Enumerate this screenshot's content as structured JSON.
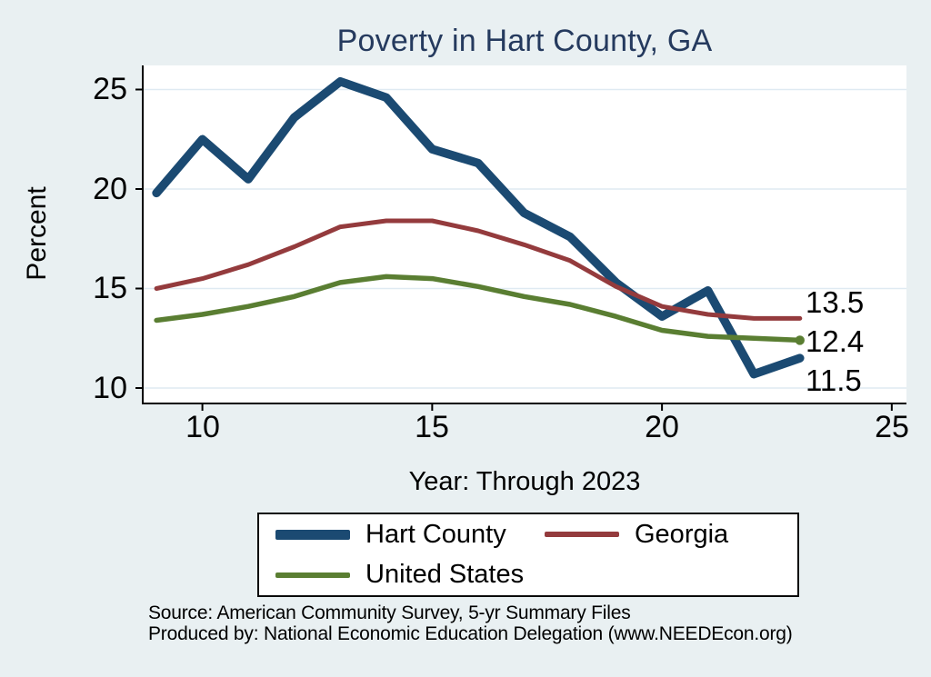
{
  "title": "Poverty in Hart County, GA",
  "chart_data": {
    "type": "line",
    "title": "Poverty in Hart County, GA",
    "xlabel": "Year: Through 2023",
    "ylabel": "Percent",
    "x": [
      9,
      10,
      11,
      12,
      13,
      14,
      15,
      16,
      17,
      18,
      19,
      20,
      21,
      22,
      23
    ],
    "series": [
      {
        "name": "Hart County",
        "color": "#1b4a72",
        "line_width": 9.5,
        "values": [
          19.8,
          22.5,
          20.5,
          23.6,
          25.4,
          24.6,
          22.0,
          21.3,
          18.8,
          17.6,
          15.3,
          13.6,
          14.9,
          10.7,
          11.5
        ]
      },
      {
        "name": "Georgia",
        "color": "#943b3d",
        "line_width": 5,
        "values": [
          15.0,
          15.5,
          16.2,
          17.1,
          18.1,
          18.4,
          18.4,
          17.9,
          17.2,
          16.4,
          15.1,
          14.1,
          13.7,
          13.5,
          13.5
        ]
      },
      {
        "name": "United States",
        "color": "#5a7e32",
        "line_width": 5.5,
        "end_marker": true,
        "values": [
          13.4,
          13.7,
          14.1,
          14.6,
          15.3,
          15.6,
          15.5,
          15.1,
          14.6,
          14.2,
          13.6,
          12.9,
          12.6,
          12.5,
          12.4
        ]
      }
    ],
    "x_ticks": [
      "10",
      "15",
      "20",
      "25"
    ],
    "y_ticks": [
      "25",
      "20",
      "15",
      "10"
    ],
    "xlim": [
      8.7,
      25.3
    ],
    "ylim": [
      9.2,
      26.3
    ],
    "grid": true,
    "legend_position": "bottom",
    "end_labels": [
      "13.5",
      "12.4",
      "11.5"
    ]
  },
  "footer": {
    "source": "Source: American Community Survey, 5-yr Summary Files",
    "produced_by": "Produced by: National Economic Education Delegation (www.NEEDEcon.org)"
  }
}
